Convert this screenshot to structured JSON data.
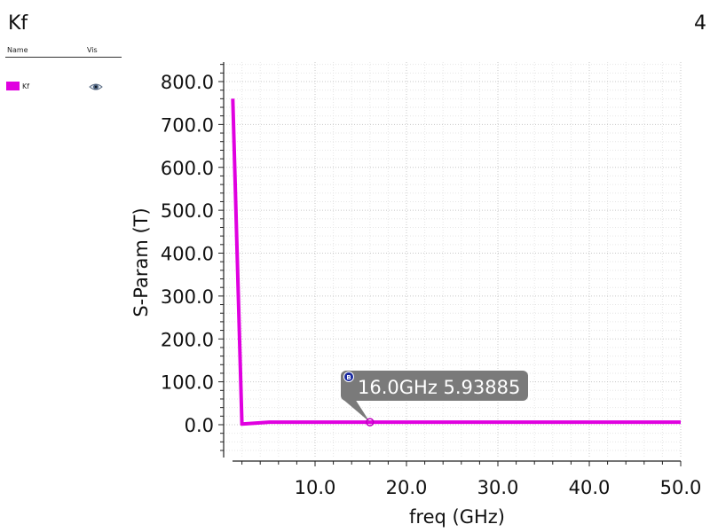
{
  "header": {
    "title": "Kf",
    "page_number": "4"
  },
  "legend": {
    "name_header": "Name",
    "vis_header": "Vis",
    "items": [
      {
        "label": "Kf",
        "color": "#e000e0",
        "visibility_icon": "eye-icon"
      }
    ]
  },
  "chart_data": {
    "type": "line",
    "title": "",
    "xlabel": "freq (GHz)",
    "ylabel": "S-Param (T)",
    "xlim": [
      0.0,
      50.0
    ],
    "ylim": [
      -80.0,
      850.0
    ],
    "x_ticks": [
      10.0,
      20.0,
      30.0,
      40.0,
      50.0
    ],
    "x_tick_labels": [
      "10.0",
      "20.0",
      "30.0",
      "40.0",
      "50.0"
    ],
    "y_ticks": [
      0.0,
      100.0,
      200.0,
      300.0,
      400.0,
      500.0,
      600.0,
      700.0,
      800.0
    ],
    "y_tick_labels": [
      "0.0",
      "100.0",
      "200.0",
      "300.0",
      "400.0",
      "500.0",
      "600.0",
      "700.0",
      "800.0"
    ],
    "grid": true,
    "series": [
      {
        "name": "Kf",
        "color": "#e000e0",
        "x": [
          1.0,
          2.0,
          5.0,
          10.0,
          16.0,
          20.0,
          30.0,
          40.0,
          50.0
        ],
        "y": [
          760.0,
          1.5,
          5.93885,
          5.93885,
          5.93885,
          5.93885,
          5.93885,
          5.93885,
          5.93885
        ]
      }
    ],
    "marker": {
      "id": "B",
      "x": 16.0,
      "y": 5.93885,
      "label": "16.0GHz 5.93885"
    }
  }
}
